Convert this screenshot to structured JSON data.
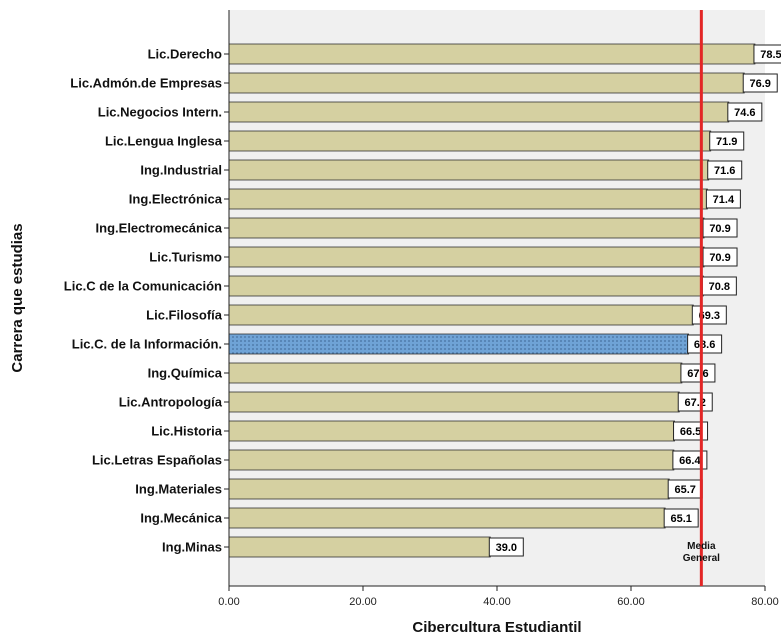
{
  "chart_data": {
    "type": "bar",
    "orientation": "horizontal",
    "xlabel": "Cibercultura Estudiantil",
    "ylabel": "Carrera que estudias",
    "xlim": [
      0,
      80
    ],
    "x_ticks": [
      0,
      20,
      40,
      60,
      80
    ],
    "x_tick_labels": [
      "0.00",
      "20.00",
      "40.00",
      "60.00",
      "80.00"
    ],
    "categories": [
      "Lic.Derecho",
      "Lic.Admón.de Empresas",
      "Lic.Negocios Intern.",
      "Lic.Lengua Inglesa",
      "Ing.Industrial",
      "Ing.Electrónica",
      "Ing.Electromecánica",
      "Lic.Turismo",
      "Lic.C de la Comunicación",
      "Lic.Filosofía",
      "Lic.C. de la Información.",
      "Ing.Química",
      "Lic.Antropología",
      "Lic.Historia",
      "Lic.Letras Españolas",
      "Ing.Materiales",
      "Ing.Mecánica",
      "Ing.Minas"
    ],
    "values": [
      78.5,
      76.9,
      74.6,
      71.9,
      71.6,
      71.4,
      70.9,
      70.9,
      70.8,
      69.3,
      68.6,
      67.6,
      67.2,
      66.5,
      66.4,
      65.7,
      65.1,
      39.0
    ],
    "value_labels": [
      "78.5",
      "76.9",
      "74.6",
      "71.9",
      "71.6",
      "71.4",
      "70.9",
      "70.9",
      "70.8",
      "69.3",
      "68.6",
      "67.6",
      "67.2",
      "66.5",
      "66.4",
      "65.7",
      "65.1",
      "39.0"
    ],
    "highlight_category": "Lic.C. de la Información.",
    "reference_line": {
      "value": 70.5,
      "label_line1": "Media",
      "label_line2": "General"
    },
    "grid": false,
    "colors": {
      "bar": "#d5d0a1",
      "highlight_bar": "#6fa3d6",
      "mean_line": "#e32626",
      "plot_bg": "#f0f0f0"
    }
  }
}
